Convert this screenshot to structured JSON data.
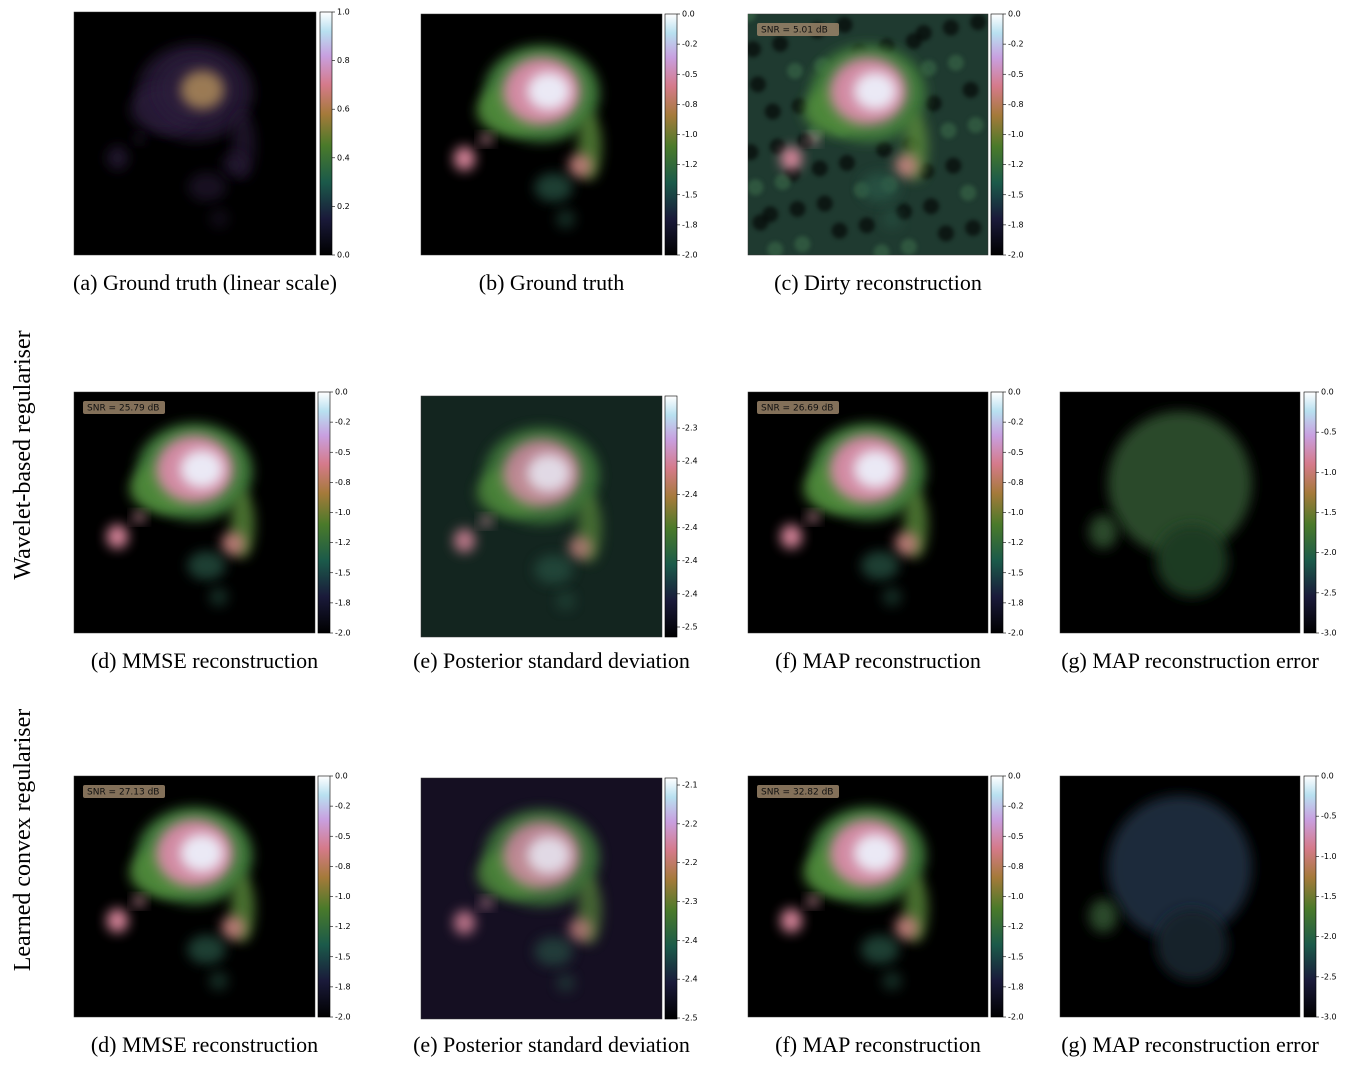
{
  "row_labels": [
    "Wavelet-based regulariser",
    "Learned convex regulariser"
  ],
  "panels": [
    {
      "caption": "(a) Ground truth (linear scale)",
      "colorbar_ticks": [
        "1.0",
        "0.8",
        "0.6",
        "0.4",
        "0.2",
        "0.0"
      ]
    },
    {
      "caption": "(b) Ground truth",
      "colorbar_ticks": [
        "0.0",
        "-0.2",
        "-0.5",
        "-0.8",
        "-1.0",
        "-1.2",
        "-1.5",
        "-1.8",
        "-2.0"
      ]
    },
    {
      "caption": "(c) Dirty reconstruction",
      "snr": "SNR = 5.01 dB",
      "colorbar_ticks": [
        "0.0",
        "-0.2",
        "-0.5",
        "-0.8",
        "-1.0",
        "-1.2",
        "-1.5",
        "-1.8",
        "-2.0"
      ]
    },
    {
      "caption": "(d) MMSE reconstruction",
      "snr": "SNR = 25.79 dB",
      "colorbar_ticks": [
        "0.0",
        "-0.2",
        "-0.5",
        "-0.8",
        "-1.0",
        "-1.2",
        "-1.5",
        "-1.8",
        "-2.0"
      ]
    },
    {
      "caption": "(e) Posterior standard deviation",
      "colorbar_ticks": [
        "-2.3",
        "-2.4",
        "-2.4",
        "-2.4",
        "-2.4",
        "-2.4",
        "-2.5"
      ]
    },
    {
      "caption": "(f) MAP reconstruction",
      "snr": "SNR = 26.69 dB",
      "colorbar_ticks": [
        "0.0",
        "-0.2",
        "-0.5",
        "-0.8",
        "-1.0",
        "-1.2",
        "-1.5",
        "-1.8",
        "-2.0"
      ]
    },
    {
      "caption": "(g) MAP reconstruction error",
      "colorbar_ticks": [
        "0.0",
        "-0.5",
        "-1.0",
        "-1.5",
        "-2.0",
        "-2.5",
        "-3.0"
      ]
    },
    {
      "caption": "(d) MMSE reconstruction",
      "snr": "SNR = 27.13 dB",
      "colorbar_ticks": [
        "0.0",
        "-0.2",
        "-0.5",
        "-0.8",
        "-1.0",
        "-1.2",
        "-1.5",
        "-1.8",
        "-2.0"
      ]
    },
    {
      "caption": "(e) Posterior standard deviation",
      "colorbar_ticks": [
        "-2.1",
        "-2.2",
        "-2.2",
        "-2.3",
        "-2.4",
        "-2.4",
        "-2.5"
      ]
    },
    {
      "caption": "(f) MAP reconstruction",
      "snr": "SNR = 32.82 dB",
      "colorbar_ticks": [
        "0.0",
        "-0.2",
        "-0.5",
        "-0.8",
        "-1.0",
        "-1.2",
        "-1.5",
        "-1.8",
        "-2.0"
      ]
    },
    {
      "caption": "(g) MAP reconstruction error",
      "colorbar_ticks": [
        "0.0",
        "-0.5",
        "-1.0",
        "-1.5",
        "-2.0",
        "-2.5",
        "-3.0"
      ]
    }
  ]
}
